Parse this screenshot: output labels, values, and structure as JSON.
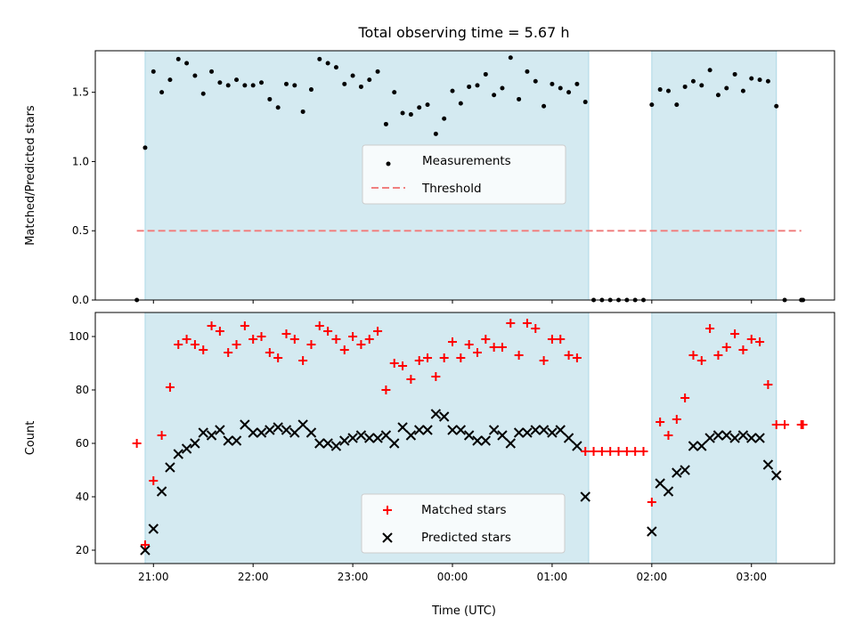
{
  "title": "Total observing time = 5.67 h",
  "xlabel": "Time (UTC)",
  "colors": {
    "band": "#d4eaf1",
    "band_edge": "#add8e6",
    "threshold": "#f08080",
    "matched": "#ff0000",
    "predicted": "#000000",
    "measure": "#000000"
  },
  "chart_data": [
    {
      "type": "scatter",
      "panel": "top",
      "ylabel": "Matched/Predicted stars",
      "xlim": [
        "20:25",
        "03:50"
      ],
      "ylim": [
        0,
        1.8
      ],
      "yticks": [
        0.0,
        0.5,
        1.0,
        1.5
      ],
      "xticks": [
        "21:00",
        "22:00",
        "23:00",
        "00:00",
        "01:00",
        "02:00",
        "03:00"
      ],
      "shaded_intervals": [
        [
          "20:55",
          "01:22"
        ],
        [
          "02:00",
          "03:15"
        ]
      ],
      "legend": {
        "placement": "center",
        "entries": [
          {
            "label": "Measurements"
          },
          {
            "label": "Threshold"
          }
        ]
      },
      "threshold": {
        "label": "Threshold",
        "value": 0.5,
        "x_range": [
          "20:50",
          "03:30"
        ]
      },
      "series": [
        {
          "name": "Measurements",
          "points": [
            [
              "20:50",
              0.0
            ],
            [
              "20:55",
              1.1
            ],
            [
              "21:00",
              1.65
            ],
            [
              "21:05",
              1.5
            ],
            [
              "21:10",
              1.59
            ],
            [
              "21:15",
              1.74
            ],
            [
              "21:20",
              1.71
            ],
            [
              "21:25",
              1.62
            ],
            [
              "21:30",
              1.49
            ],
            [
              "21:35",
              1.65
            ],
            [
              "21:40",
              1.57
            ],
            [
              "21:45",
              1.55
            ],
            [
              "21:50",
              1.59
            ],
            [
              "21:55",
              1.55
            ],
            [
              "22:00",
              1.55
            ],
            [
              "22:05",
              1.57
            ],
            [
              "22:10",
              1.45
            ],
            [
              "22:15",
              1.39
            ],
            [
              "22:20",
              1.56
            ],
            [
              "22:25",
              1.55
            ],
            [
              "22:30",
              1.36
            ],
            [
              "22:35",
              1.52
            ],
            [
              "22:40",
              1.74
            ],
            [
              "22:45",
              1.71
            ],
            [
              "22:50",
              1.68
            ],
            [
              "22:55",
              1.56
            ],
            [
              "23:00",
              1.62
            ],
            [
              "23:05",
              1.54
            ],
            [
              "23:10",
              1.59
            ],
            [
              "23:15",
              1.65
            ],
            [
              "23:20",
              1.27
            ],
            [
              "23:25",
              1.5
            ],
            [
              "23:30",
              1.35
            ],
            [
              "23:35",
              1.34
            ],
            [
              "23:40",
              1.39
            ],
            [
              "23:45",
              1.41
            ],
            [
              "23:50",
              1.2
            ],
            [
              "23:55",
              1.31
            ],
            [
              "00:00",
              1.51
            ],
            [
              "00:05",
              1.42
            ],
            [
              "00:10",
              1.54
            ],
            [
              "00:15",
              1.55
            ],
            [
              "00:20",
              1.63
            ],
            [
              "00:25",
              1.48
            ],
            [
              "00:30",
              1.53
            ],
            [
              "00:35",
              1.75
            ],
            [
              "00:40",
              1.45
            ],
            [
              "00:45",
              1.65
            ],
            [
              "00:50",
              1.58
            ],
            [
              "00:55",
              1.4
            ],
            [
              "01:00",
              1.56
            ],
            [
              "01:05",
              1.53
            ],
            [
              "01:10",
              1.5
            ],
            [
              "01:15",
              1.56
            ],
            [
              "01:20",
              1.43
            ],
            [
              "01:25",
              0.0
            ],
            [
              "01:30",
              0.0
            ],
            [
              "01:35",
              0.0
            ],
            [
              "01:40",
              0.0
            ],
            [
              "01:45",
              0.0
            ],
            [
              "01:50",
              0.0
            ],
            [
              "01:55",
              0.0
            ],
            [
              "02:00",
              1.41
            ],
            [
              "02:05",
              1.52
            ],
            [
              "02:10",
              1.51
            ],
            [
              "02:15",
              1.41
            ],
            [
              "02:20",
              1.54
            ],
            [
              "02:25",
              1.58
            ],
            [
              "02:30",
              1.55
            ],
            [
              "02:35",
              1.66
            ],
            [
              "02:40",
              1.48
            ],
            [
              "02:45",
              1.53
            ],
            [
              "02:50",
              1.63
            ],
            [
              "02:55",
              1.51
            ],
            [
              "03:00",
              1.6
            ],
            [
              "03:05",
              1.59
            ],
            [
              "03:10",
              1.58
            ],
            [
              "03:15",
              1.4
            ],
            [
              "03:20",
              0.0
            ],
            [
              "03:30",
              0.0
            ],
            [
              "03:31",
              0.0
            ]
          ]
        }
      ]
    },
    {
      "type": "scatter",
      "panel": "bottom",
      "ylabel": "Count",
      "xlim": [
        "20:25",
        "03:50"
      ],
      "ylim": [
        15,
        109
      ],
      "yticks": [
        20,
        40,
        60,
        80,
        100
      ],
      "xticks": [
        "21:00",
        "22:00",
        "23:00",
        "00:00",
        "01:00",
        "02:00",
        "03:00"
      ],
      "shaded_intervals": [
        [
          "20:55",
          "01:22"
        ],
        [
          "02:00",
          "03:15"
        ]
      ],
      "legend": {
        "placement": "lower center",
        "entries": [
          {
            "label": "Matched stars"
          },
          {
            "label": "Predicted stars"
          }
        ]
      },
      "series": [
        {
          "name": "Matched stars",
          "points": [
            [
              "20:50",
              60
            ],
            [
              "20:55",
              22
            ],
            [
              "21:00",
              46
            ],
            [
              "21:05",
              63
            ],
            [
              "21:10",
              81
            ],
            [
              "21:15",
              97
            ],
            [
              "21:20",
              99
            ],
            [
              "21:25",
              97
            ],
            [
              "21:30",
              95
            ],
            [
              "21:35",
              104
            ],
            [
              "21:40",
              102
            ],
            [
              "21:45",
              94
            ],
            [
              "21:50",
              97
            ],
            [
              "21:55",
              104
            ],
            [
              "22:00",
              99
            ],
            [
              "22:05",
              100
            ],
            [
              "22:10",
              94
            ],
            [
              "22:15",
              92
            ],
            [
              "22:20",
              101
            ],
            [
              "22:25",
              99
            ],
            [
              "22:30",
              91
            ],
            [
              "22:35",
              97
            ],
            [
              "22:40",
              104
            ],
            [
              "22:45",
              102
            ],
            [
              "22:50",
              99
            ],
            [
              "22:55",
              95
            ],
            [
              "23:00",
              100
            ],
            [
              "23:05",
              97
            ],
            [
              "23:10",
              99
            ],
            [
              "23:15",
              102
            ],
            [
              "23:20",
              80
            ],
            [
              "23:25",
              90
            ],
            [
              "23:30",
              89
            ],
            [
              "23:35",
              84
            ],
            [
              "23:40",
              91
            ],
            [
              "23:45",
              92
            ],
            [
              "23:50",
              85
            ],
            [
              "23:55",
              92
            ],
            [
              "00:00",
              98
            ],
            [
              "00:05",
              92
            ],
            [
              "00:10",
              97
            ],
            [
              "00:15",
              94
            ],
            [
              "00:20",
              99
            ],
            [
              "00:25",
              96
            ],
            [
              "00:30",
              96
            ],
            [
              "00:35",
              105
            ],
            [
              "00:40",
              93
            ],
            [
              "00:45",
              105
            ],
            [
              "00:50",
              103
            ],
            [
              "00:55",
              91
            ],
            [
              "01:00",
              99
            ],
            [
              "01:05",
              99
            ],
            [
              "01:10",
              93
            ],
            [
              "01:15",
              92
            ],
            [
              "01:20",
              57
            ],
            [
              "01:25",
              57
            ],
            [
              "01:30",
              57
            ],
            [
              "01:35",
              57
            ],
            [
              "01:40",
              57
            ],
            [
              "01:45",
              57
            ],
            [
              "01:50",
              57
            ],
            [
              "01:55",
              57
            ],
            [
              "02:00",
              38
            ],
            [
              "02:05",
              68
            ],
            [
              "02:10",
              63
            ],
            [
              "02:15",
              69
            ],
            [
              "02:20",
              77
            ],
            [
              "02:25",
              93
            ],
            [
              "02:30",
              91
            ],
            [
              "02:35",
              103
            ],
            [
              "02:40",
              93
            ],
            [
              "02:45",
              96
            ],
            [
              "02:50",
              101
            ],
            [
              "02:55",
              95
            ],
            [
              "03:00",
              99
            ],
            [
              "03:05",
              98
            ],
            [
              "03:10",
              82
            ],
            [
              "03:15",
              67
            ],
            [
              "03:20",
              67
            ],
            [
              "03:30",
              67
            ],
            [
              "03:31",
              67
            ]
          ]
        },
        {
          "name": "Predicted stars",
          "points": [
            [
              "20:55",
              20
            ],
            [
              "21:00",
              28
            ],
            [
              "21:05",
              42
            ],
            [
              "21:10",
              51
            ],
            [
              "21:15",
              56
            ],
            [
              "21:20",
              58
            ],
            [
              "21:25",
              60
            ],
            [
              "21:30",
              64
            ],
            [
              "21:35",
              63
            ],
            [
              "21:40",
              65
            ],
            [
              "21:45",
              61
            ],
            [
              "21:50",
              61
            ],
            [
              "21:55",
              67
            ],
            [
              "22:00",
              64
            ],
            [
              "22:05",
              64
            ],
            [
              "22:10",
              65
            ],
            [
              "22:15",
              66
            ],
            [
              "22:20",
              65
            ],
            [
              "22:25",
              64
            ],
            [
              "22:30",
              67
            ],
            [
              "22:35",
              64
            ],
            [
              "22:40",
              60
            ],
            [
              "22:45",
              60
            ],
            [
              "22:50",
              59
            ],
            [
              "22:55",
              61
            ],
            [
              "23:00",
              62
            ],
            [
              "23:05",
              63
            ],
            [
              "23:10",
              62
            ],
            [
              "23:15",
              62
            ],
            [
              "23:20",
              63
            ],
            [
              "23:25",
              60
            ],
            [
              "23:30",
              66
            ],
            [
              "23:35",
              63
            ],
            [
              "23:40",
              65
            ],
            [
              "23:45",
              65
            ],
            [
              "23:50",
              71
            ],
            [
              "23:55",
              70
            ],
            [
              "00:00",
              65
            ],
            [
              "00:05",
              65
            ],
            [
              "00:10",
              63
            ],
            [
              "00:15",
              61
            ],
            [
              "00:20",
              61
            ],
            [
              "00:25",
              65
            ],
            [
              "00:30",
              63
            ],
            [
              "00:35",
              60
            ],
            [
              "00:40",
              64
            ],
            [
              "00:45",
              64
            ],
            [
              "00:50",
              65
            ],
            [
              "00:55",
              65
            ],
            [
              "01:00",
              64
            ],
            [
              "01:05",
              65
            ],
            [
              "01:10",
              62
            ],
            [
              "01:15",
              59
            ],
            [
              "01:20",
              40
            ],
            [
              "02:00",
              27
            ],
            [
              "02:05",
              45
            ],
            [
              "02:10",
              42
            ],
            [
              "02:15",
              49
            ],
            [
              "02:20",
              50
            ],
            [
              "02:25",
              59
            ],
            [
              "02:30",
              59
            ],
            [
              "02:35",
              62
            ],
            [
              "02:40",
              63
            ],
            [
              "02:45",
              63
            ],
            [
              "02:50",
              62
            ],
            [
              "02:55",
              63
            ],
            [
              "03:00",
              62
            ],
            [
              "03:05",
              62
            ],
            [
              "03:10",
              52
            ],
            [
              "03:15",
              48
            ]
          ]
        }
      ]
    }
  ]
}
